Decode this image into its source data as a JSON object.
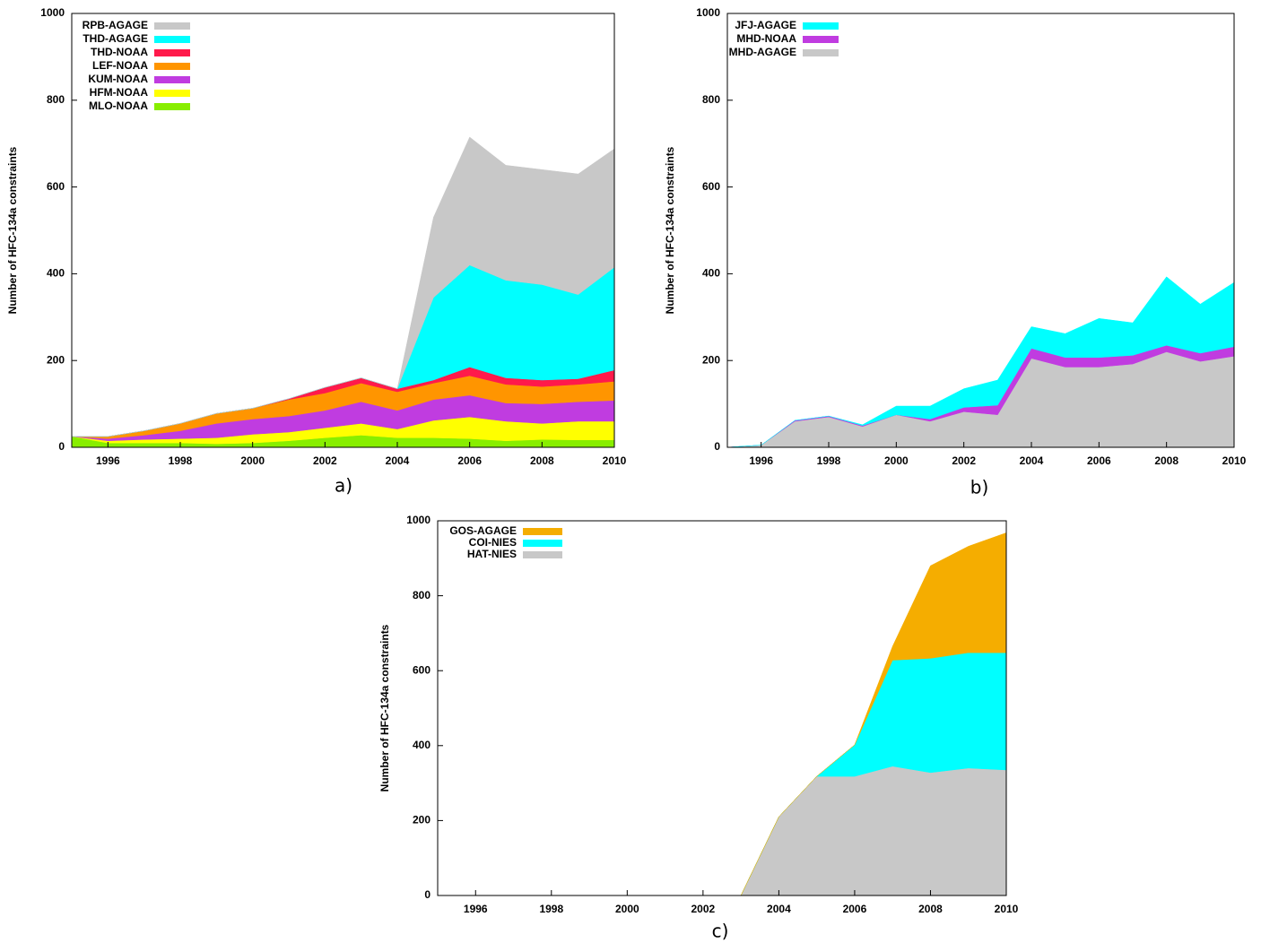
{
  "chart_data": [
    {
      "type": "stacked-area",
      "panel_label": "a)",
      "ylabel": "Number of HFC-134a constraints",
      "x": [
        1995,
        1996,
        1997,
        1998,
        1999,
        2000,
        2001,
        2002,
        2003,
        2004,
        2005,
        2006,
        2007,
        2008,
        2009,
        2010
      ],
      "xlim": [
        1995,
        2010
      ],
      "xticks": [
        1996,
        1998,
        2000,
        2002,
        2004,
        2006,
        2008,
        2010
      ],
      "ylim": [
        0,
        1000
      ],
      "yticks": [
        0,
        200,
        400,
        600,
        800,
        1000
      ],
      "legend": "upper left",
      "series": [
        {
          "name": "MLO-NOAA",
          "color": "#88ee00",
          "values": [
            25,
            10,
            10,
            10,
            8,
            10,
            15,
            22,
            28,
            22,
            22,
            20,
            15,
            18,
            17,
            17
          ]
        },
        {
          "name": "HFM-NOAA",
          "color": "#ffff00",
          "values": [
            0,
            5,
            8,
            10,
            14,
            20,
            20,
            23,
            27,
            20,
            40,
            50,
            45,
            37,
            43,
            43
          ]
        },
        {
          "name": "KUM-NOAA",
          "color": "#c03ce0",
          "values": [
            0,
            5,
            10,
            18,
            33,
            35,
            37,
            40,
            50,
            43,
            48,
            50,
            42,
            45,
            45,
            48
          ]
        },
        {
          "name": "LEF-NOAA",
          "color": "#ff9500",
          "values": [
            0,
            5,
            10,
            17,
            23,
            25,
            38,
            40,
            43,
            43,
            38,
            45,
            43,
            40,
            40,
            44
          ]
        },
        {
          "name": "THD-NOAA",
          "color": "#ff1a4b",
          "values": [
            0,
            0,
            0,
            0,
            0,
            0,
            2,
            13,
            12,
            7,
            7,
            20,
            15,
            15,
            13,
            26
          ]
        },
        {
          "name": "THD-AGAGE",
          "color": "#00ffff",
          "values": [
            0,
            0,
            0,
            0,
            0,
            0,
            0,
            0,
            0,
            0,
            190,
            235,
            225,
            220,
            194,
            237
          ]
        },
        {
          "name": "RPB-AGAGE",
          "color": "#c8c8c8",
          "values": [
            0,
            0,
            0,
            0,
            0,
            0,
            0,
            0,
            0,
            0,
            185,
            295,
            265,
            265,
            278,
            273
          ]
        }
      ]
    },
    {
      "type": "stacked-area",
      "panel_label": "b)",
      "ylabel": "Number of HFC-134a constraints",
      "x": [
        1995,
        1996,
        1997,
        1998,
        1999,
        2000,
        2001,
        2002,
        2003,
        2004,
        2005,
        2006,
        2007,
        2008,
        2009,
        2010
      ],
      "xlim": [
        1995,
        2010
      ],
      "xticks": [
        1996,
        1998,
        2000,
        2002,
        2004,
        2006,
        2008,
        2010
      ],
      "ylim": [
        0,
        1000
      ],
      "yticks": [
        0,
        200,
        400,
        600,
        800,
        1000
      ],
      "legend": "upper left",
      "series": [
        {
          "name": "MHD-AGAGE",
          "color": "#c8c8c8",
          "values": [
            0,
            5,
            60,
            70,
            48,
            75,
            60,
            82,
            75,
            205,
            185,
            185,
            192,
            220,
            198,
            210
          ]
        },
        {
          "name": "MHD-NOAA",
          "color": "#c03ce0",
          "values": [
            0,
            0,
            2,
            2,
            2,
            0,
            5,
            10,
            22,
            23,
            22,
            22,
            20,
            15,
            19,
            22
          ]
        },
        {
          "name": "JFJ-AGAGE",
          "color": "#00ffff",
          "values": [
            0,
            0,
            0,
            0,
            2,
            20,
            30,
            43,
            58,
            50,
            55,
            90,
            75,
            158,
            113,
            148
          ]
        }
      ]
    },
    {
      "type": "stacked-area",
      "panel_label": "c)",
      "ylabel": "Number of HFC-134a constraints",
      "x": [
        1995,
        1996,
        1997,
        1998,
        1999,
        2000,
        2001,
        2002,
        2003,
        2004,
        2005,
        2006,
        2007,
        2008,
        2009,
        2010
      ],
      "xlim": [
        1995,
        2010
      ],
      "xticks": [
        1996,
        1998,
        2000,
        2002,
        2004,
        2006,
        2008,
        2010
      ],
      "ylim": [
        0,
        1000
      ],
      "yticks": [
        0,
        200,
        400,
        600,
        800,
        1000
      ],
      "legend": "upper left",
      "series": [
        {
          "name": "HAT-NIES",
          "color": "#c8c8c8",
          "values": [
            0,
            0,
            0,
            0,
            0,
            0,
            0,
            0,
            0,
            210,
            318,
            318,
            345,
            328,
            340,
            335
          ]
        },
        {
          "name": "COI-NIES",
          "color": "#00ffff",
          "values": [
            0,
            0,
            0,
            0,
            0,
            0,
            0,
            0,
            0,
            0,
            0,
            84,
            283,
            305,
            308,
            313
          ]
        },
        {
          "name": "GOS-AGAGE",
          "color": "#f5ad00",
          "values": [
            0,
            0,
            0,
            0,
            0,
            0,
            0,
            0,
            0,
            0,
            0,
            0,
            37,
            247,
            284,
            320
          ]
        }
      ]
    }
  ]
}
